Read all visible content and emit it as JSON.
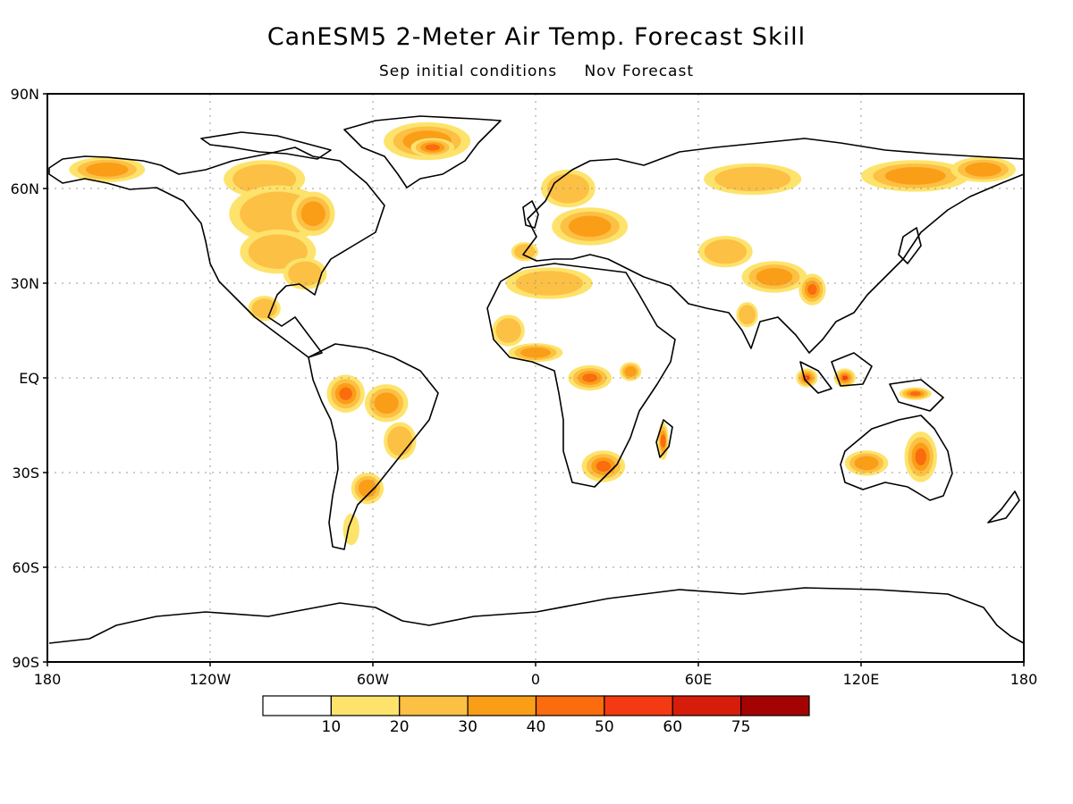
{
  "header": {
    "title": "CanESM5 2-Meter Air Temp. Forecast Skill",
    "subtitle_left": "Sep initial conditions",
    "subtitle_right": "Nov Forecast"
  },
  "axes": {
    "lat_ticks": [
      {
        "value": 90,
        "label": "90N"
      },
      {
        "value": 60,
        "label": "60N"
      },
      {
        "value": 30,
        "label": "30N"
      },
      {
        "value": 0,
        "label": "EQ"
      },
      {
        "value": -30,
        "label": "30S"
      },
      {
        "value": -60,
        "label": "60S"
      },
      {
        "value": -90,
        "label": "90S"
      }
    ],
    "lon_ticks": [
      {
        "value": -180,
        "label": "180"
      },
      {
        "value": -120,
        "label": "120W"
      },
      {
        "value": -60,
        "label": "60W"
      },
      {
        "value": 0,
        "label": "0"
      },
      {
        "value": 60,
        "label": "60E"
      },
      {
        "value": 120,
        "label": "120E"
      },
      {
        "value": 180,
        "label": "180"
      }
    ]
  },
  "colorbar": {
    "levels": [
      "10",
      "20",
      "30",
      "40",
      "50",
      "60",
      "75"
    ],
    "colors": [
      "#ffffff",
      "#fde36b",
      "#fcc044",
      "#fb9e17",
      "#fa6c0e",
      "#f33a12",
      "#d61d0b",
      "#a30303"
    ]
  },
  "skill_regions": [
    {
      "name": "alaska",
      "lon": -158,
      "lat": 66,
      "rx": 14,
      "ry": 4,
      "level": 3
    },
    {
      "name": "canada-north",
      "lon": -100,
      "lat": 63,
      "rx": 15,
      "ry": 6,
      "level": 2
    },
    {
      "name": "canada-central",
      "lon": -95,
      "lat": 52,
      "rx": 18,
      "ry": 9,
      "level": 2
    },
    {
      "name": "hudson-east",
      "lon": -82,
      "lat": 52,
      "rx": 8,
      "ry": 7,
      "level": 3
    },
    {
      "name": "us-midwest",
      "lon": -95,
      "lat": 40,
      "rx": 14,
      "ry": 7,
      "level": 2
    },
    {
      "name": "us-southeast",
      "lon": -85,
      "lat": 33,
      "rx": 8,
      "ry": 5,
      "level": 2
    },
    {
      "name": "mexico",
      "lon": -100,
      "lat": 22,
      "rx": 6,
      "ry": 4,
      "level": 2
    },
    {
      "name": "greenland",
      "lon": -40,
      "lat": 75,
      "rx": 16,
      "ry": 6,
      "level": 3
    },
    {
      "name": "greenland-core",
      "lon": -38,
      "lat": 73,
      "rx": 8,
      "ry": 3,
      "level": 4
    },
    {
      "name": "scandinavia",
      "lon": 12,
      "lat": 60,
      "rx": 10,
      "ry": 6,
      "level": 2
    },
    {
      "name": "europe-central",
      "lon": 20,
      "lat": 48,
      "rx": 14,
      "ry": 6,
      "level": 3
    },
    {
      "name": "iberia",
      "lon": -4,
      "lat": 40,
      "rx": 5,
      "ry": 3,
      "level": 2
    },
    {
      "name": "north-africa",
      "lon": 5,
      "lat": 30,
      "rx": 16,
      "ry": 5,
      "level": 2
    },
    {
      "name": "sahel-west",
      "lon": -10,
      "lat": 15,
      "rx": 6,
      "ry": 5,
      "level": 2
    },
    {
      "name": "west-africa",
      "lon": 0,
      "lat": 8,
      "rx": 10,
      "ry": 3,
      "level": 3
    },
    {
      "name": "central-africa",
      "lon": 20,
      "lat": 0,
      "rx": 8,
      "ry": 4,
      "level": 4
    },
    {
      "name": "east-africa",
      "lon": 35,
      "lat": 2,
      "rx": 4,
      "ry": 3,
      "level": 3
    },
    {
      "name": "southern-africa",
      "lon": 25,
      "lat": -28,
      "rx": 8,
      "ry": 5,
      "level": 4
    },
    {
      "name": "madagascar",
      "lon": 47,
      "lat": -20,
      "rx": 2,
      "ry": 6,
      "level": 4
    },
    {
      "name": "siberia-west",
      "lon": 80,
      "lat": 63,
      "rx": 18,
      "ry": 5,
      "level": 2
    },
    {
      "name": "siberia-east",
      "lon": 140,
      "lat": 64,
      "rx": 20,
      "ry": 5,
      "level": 3
    },
    {
      "name": "kamchatka",
      "lon": 165,
      "lat": 66,
      "rx": 12,
      "ry": 4,
      "level": 3
    },
    {
      "name": "central-asia",
      "lon": 70,
      "lat": 40,
      "rx": 10,
      "ry": 5,
      "level": 2
    },
    {
      "name": "tibet",
      "lon": 88,
      "lat": 32,
      "rx": 12,
      "ry": 5,
      "level": 3
    },
    {
      "name": "china-south",
      "lon": 102,
      "lat": 28,
      "rx": 5,
      "ry": 5,
      "level": 4
    },
    {
      "name": "india",
      "lon": 78,
      "lat": 20,
      "rx": 4,
      "ry": 4,
      "level": 2
    },
    {
      "name": "sumatra",
      "lon": 100,
      "lat": 0,
      "rx": 4,
      "ry": 3,
      "level": 5
    },
    {
      "name": "borneo",
      "lon": 114,
      "lat": 0,
      "rx": 4,
      "ry": 3,
      "level": 5
    },
    {
      "name": "new-guinea",
      "lon": 140,
      "lat": -5,
      "rx": 6,
      "ry": 2,
      "level": 4
    },
    {
      "name": "australia-west",
      "lon": 122,
      "lat": -27,
      "rx": 8,
      "ry": 4,
      "level": 3
    },
    {
      "name": "australia-east",
      "lon": 142,
      "lat": -25,
      "rx": 6,
      "ry": 8,
      "level": 4
    },
    {
      "name": "amazon-west",
      "lon": -70,
      "lat": -5,
      "rx": 7,
      "ry": 6,
      "level": 4
    },
    {
      "name": "amazon-east",
      "lon": -55,
      "lat": -8,
      "rx": 8,
      "ry": 6,
      "level": 3
    },
    {
      "name": "brazil-south",
      "lon": -50,
      "lat": -20,
      "rx": 6,
      "ry": 6,
      "level": 2
    },
    {
      "name": "argentina",
      "lon": -62,
      "lat": -35,
      "rx": 6,
      "ry": 5,
      "level": 3
    },
    {
      "name": "patagonia",
      "lon": -68,
      "lat": -48,
      "rx": 3,
      "ry": 5,
      "level": 1
    }
  ]
}
